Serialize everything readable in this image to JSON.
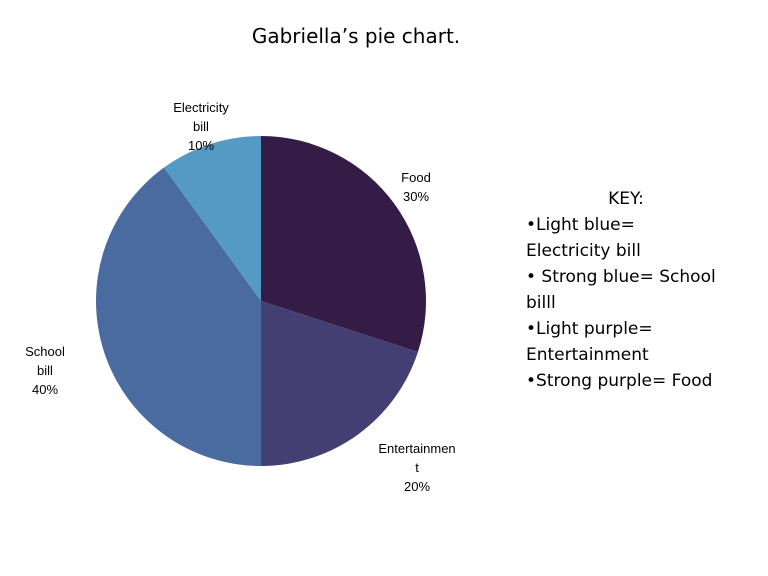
{
  "chart_data": {
    "type": "pie",
    "title": "Gabriella’s pie chart.",
    "slices": [
      {
        "label_lines": [
          "Food",
          "30%"
        ],
        "label": "Food",
        "value": 30,
        "color": "#341c47"
      },
      {
        "label_lines": [
          "Entertainmen",
          "t",
          "20%"
        ],
        "label": "Entertainment",
        "value": 20,
        "color": "#433f72"
      },
      {
        "label_lines": [
          "School",
          "bill",
          "40%"
        ],
        "label": "School bill",
        "value": 40,
        "color": "#4a6b9f"
      },
      {
        "label_lines": [
          "Electricity",
          "bill",
          "10%"
        ],
        "label": "Electricity bill",
        "value": 10,
        "color": "#559ac5"
      }
    ]
  },
  "key": {
    "title": "KEY:",
    "lines": [
      "•Light blue=",
      "Electricity bill",
      "• Strong blue=  School",
      "billl",
      "•Light purple=",
      "Entertainment",
      " •Strong purple= Food"
    ]
  }
}
